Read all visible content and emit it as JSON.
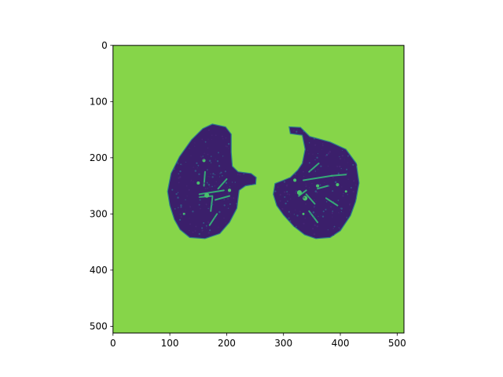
{
  "chart_data": {
    "type": "heatmap",
    "title": "",
    "xlabel": "",
    "ylabel": "",
    "xlim": [
      0,
      512
    ],
    "ylim": [
      512,
      0
    ],
    "x_ticks": [
      0,
      100,
      200,
      300,
      400,
      500
    ],
    "y_ticks": [
      0,
      100,
      200,
      300,
      400,
      500
    ],
    "x_tick_labels": [
      "0",
      "100",
      "200",
      "300",
      "400",
      "500"
    ],
    "y_tick_labels": [
      "0",
      "100",
      "200",
      "300",
      "400",
      "500"
    ],
    "grid": false,
    "legend": "none",
    "colormap": "viridis",
    "description_colors": {
      "background": "#86d549",
      "tissue": "#3b1f6b",
      "vessels": "#35b779"
    },
    "regions": [
      {
        "name": "left-lung",
        "outline": [
          [
            175,
            140
          ],
          [
            198,
            145
          ],
          [
            208,
            158
          ],
          [
            208,
            190
          ],
          [
            210,
            215
          ],
          [
            220,
            225
          ],
          [
            243,
            228
          ],
          [
            252,
            235
          ],
          [
            251,
            247
          ],
          [
            233,
            250
          ],
          [
            222,
            258
          ],
          [
            218,
            290
          ],
          [
            205,
            315
          ],
          [
            188,
            335
          ],
          [
            162,
            344
          ],
          [
            135,
            342
          ],
          [
            118,
            328
          ],
          [
            108,
            310
          ],
          [
            100,
            285
          ],
          [
            96,
            260
          ],
          [
            102,
            228
          ],
          [
            117,
            198
          ],
          [
            138,
            168
          ],
          [
            158,
            148
          ]
        ]
      },
      {
        "name": "right-lung",
        "outline": [
          [
            310,
            145
          ],
          [
            330,
            146
          ],
          [
            346,
            162
          ],
          [
            382,
            172
          ],
          [
            410,
            185
          ],
          [
            428,
            210
          ],
          [
            433,
            245
          ],
          [
            427,
            278
          ],
          [
            418,
            303
          ],
          [
            400,
            330
          ],
          [
            382,
            342
          ],
          [
            357,
            344
          ],
          [
            337,
            337
          ],
          [
            318,
            322
          ],
          [
            300,
            302
          ],
          [
            288,
            285
          ],
          [
            282,
            265
          ],
          [
            285,
            246
          ],
          [
            300,
            240
          ],
          [
            312,
            235
          ],
          [
            325,
            222
          ],
          [
            333,
            210
          ],
          [
            338,
            185
          ],
          [
            333,
            160
          ],
          [
            312,
            157
          ]
        ]
      }
    ],
    "vessels": [
      {
        "lung": "left",
        "from": [
          152,
          265
        ],
        "to": [
          195,
          258
        ]
      },
      {
        "lung": "left",
        "from": [
          152,
          270
        ],
        "to": [
          175,
          268
        ]
      },
      {
        "lung": "left",
        "from": [
          160,
          250
        ],
        "to": [
          162,
          225
        ]
      },
      {
        "lung": "left",
        "from": [
          175,
          270
        ],
        "to": [
          172,
          295
        ]
      },
      {
        "lung": "left",
        "from": [
          185,
          255
        ],
        "to": [
          200,
          238
        ]
      },
      {
        "lung": "left",
        "from": [
          183,
          300
        ],
        "to": [
          170,
          320
        ]
      },
      {
        "lung": "left",
        "from": [
          180,
          275
        ],
        "to": [
          205,
          268
        ]
      },
      {
        "lung": "right",
        "from": [
          335,
          240
        ],
        "to": [
          385,
          232
        ]
      },
      {
        "lung": "right",
        "from": [
          385,
          232
        ],
        "to": [
          410,
          230
        ]
      },
      {
        "lung": "right",
        "from": [
          327,
          268
        ],
        "to": [
          340,
          258
        ]
      },
      {
        "lung": "right",
        "from": [
          340,
          265
        ],
        "to": [
          355,
          282
        ]
      },
      {
        "lung": "right",
        "from": [
          345,
          225
        ],
        "to": [
          362,
          210
        ]
      },
      {
        "lung": "right",
        "from": [
          360,
          255
        ],
        "to": [
          378,
          250
        ]
      },
      {
        "lung": "right",
        "from": [
          345,
          295
        ],
        "to": [
          360,
          315
        ]
      },
      {
        "lung": "right",
        "from": [
          375,
          272
        ],
        "to": [
          395,
          285
        ]
      }
    ],
    "nodules": [
      {
        "lung": "left",
        "at": [
          165,
          267
        ],
        "r": 3
      },
      {
        "lung": "left",
        "at": [
          150,
          245
        ],
        "r": 2
      },
      {
        "lung": "left",
        "at": [
          160,
          205
        ],
        "r": 2
      },
      {
        "lung": "left",
        "at": [
          205,
          258
        ],
        "r": 2
      },
      {
        "lung": "left",
        "at": [
          125,
          300
        ],
        "r": 1.5
      },
      {
        "lung": "right",
        "at": [
          328,
          262
        ],
        "r": 3
      },
      {
        "lung": "right",
        "at": [
          338,
          272
        ],
        "r": 3
      },
      {
        "lung": "right",
        "at": [
          360,
          250
        ],
        "r": 2
      },
      {
        "lung": "right",
        "at": [
          395,
          248
        ],
        "r": 2
      },
      {
        "lung": "right",
        "at": [
          335,
          300
        ],
        "r": 1.5
      },
      {
        "lung": "right",
        "at": [
          410,
          260
        ],
        "r": 1.5
      },
      {
        "lung": "right",
        "at": [
          320,
          240
        ],
        "r": 2
      }
    ]
  }
}
